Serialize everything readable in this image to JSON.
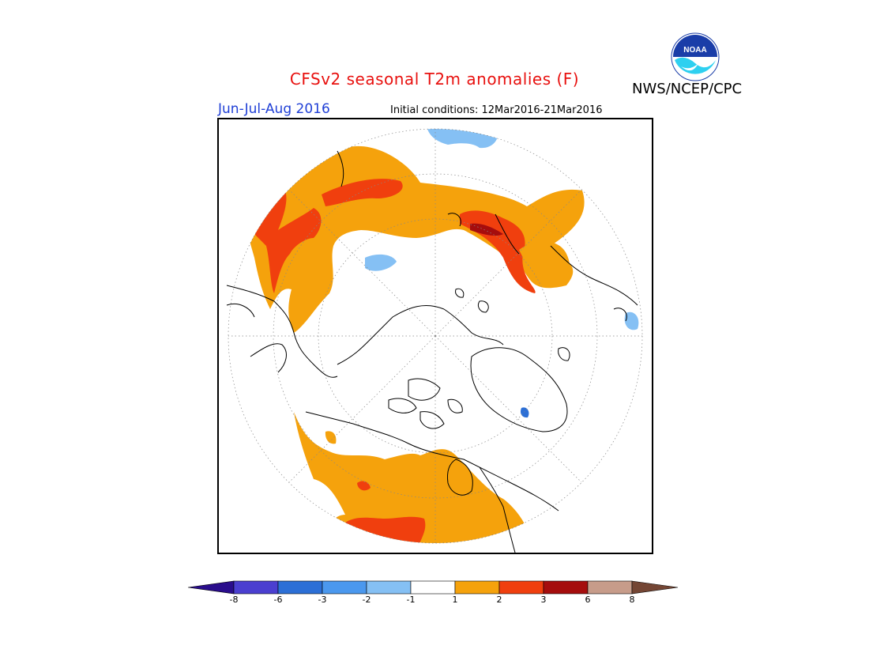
{
  "header": {
    "title": "CFSv2 seasonal T2m anomalies (F)",
    "season": "Jun-Jul-Aug 2016",
    "initial_conditions": "Initial conditions: 12Mar2016-21Mar2016",
    "agency": "NWS/NCEP/CPC",
    "logo_text": "NOAA"
  },
  "colorbar": {
    "colors": [
      "#2a0d8c",
      "#4b3fd0",
      "#2c6fd6",
      "#4b98ee",
      "#85c0f4",
      "#ffffff",
      "#f5a20c",
      "#f03f0e",
      "#a50d0d",
      "#c79c8a",
      "#744634"
    ],
    "labels": [
      "-8",
      "-6",
      "-3",
      "-2",
      "-1",
      "1",
      "2",
      "3",
      "6",
      "8"
    ]
  },
  "map": {
    "projection": "North polar stereographic",
    "background": "#ffffff",
    "coastline_color": "#000000",
    "graticule_color": "#888888"
  }
}
